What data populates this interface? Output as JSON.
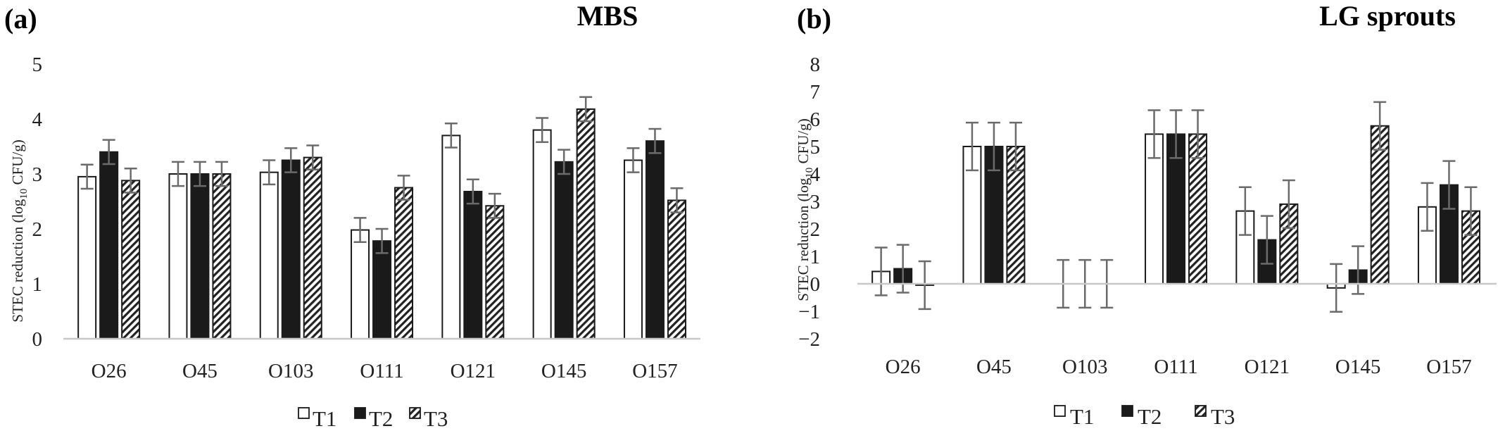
{
  "chart_data": [
    {
      "type": "bar",
      "panel": "(a)",
      "title": "MBS",
      "xlabel": "",
      "ylabel": "STEC reduction (log10 CFU/g)",
      "ylabel_main": "STEC reduction (log",
      "ylabel_sub": "10",
      "ylabel_tail": " CFU/g)",
      "ylim": [
        0,
        5
      ],
      "yticks": [
        "0",
        "1",
        "2",
        "3",
        "4",
        "5"
      ],
      "categories": [
        "O26",
        "O45",
        "O103",
        "O111",
        "O121",
        "O145",
        "O157"
      ],
      "series": [
        {
          "name": "T1",
          "values": [
            2.95,
            3.0,
            3.03,
            1.98,
            3.7,
            3.8,
            3.25
          ],
          "errors": [
            0.22,
            0.22,
            0.22,
            0.22,
            0.22,
            0.22,
            0.22
          ]
        },
        {
          "name": "T2",
          "values": [
            3.4,
            3.0,
            3.25,
            1.78,
            2.68,
            3.22,
            3.6
          ],
          "errors": [
            0.22,
            0.22,
            0.22,
            0.22,
            0.22,
            0.22,
            0.22
          ]
        },
        {
          "name": "T3",
          "values": [
            2.88,
            3.0,
            3.3,
            2.75,
            2.42,
            4.18,
            2.52
          ],
          "errors": [
            0.22,
            0.22,
            0.22,
            0.22,
            0.22,
            0.22,
            0.22
          ]
        }
      ],
      "grid": false,
      "legend_position": "bottom"
    },
    {
      "type": "bar",
      "panel": "(b)",
      "title": "LG sprouts",
      "xlabel": "",
      "ylabel": "STEC reduction (log10 CFU/g)",
      "ylabel_main": "STEC reduction (log",
      "ylabel_sub": "10",
      "ylabel_tail": " CFU/g)",
      "ylim": [
        -2,
        8
      ],
      "yticks": [
        "−2",
        "−1",
        "0",
        "1",
        "2",
        "3",
        "4",
        "5",
        "6",
        "7",
        "8"
      ],
      "categories": [
        "O26",
        "O45",
        "O103",
        "O111",
        "O121",
        "O145",
        "O157"
      ],
      "series": [
        {
          "name": "T1",
          "values": [
            0.45,
            5.0,
            0.0,
            5.45,
            2.65,
            -0.15,
            2.8
          ],
          "errors": [
            0.87,
            0.87,
            0.87,
            0.87,
            0.87,
            0.87,
            0.87
          ]
        },
        {
          "name": "T2",
          "values": [
            0.55,
            5.0,
            0.0,
            5.45,
            1.6,
            0.5,
            3.6
          ],
          "errors": [
            0.87,
            0.87,
            0.87,
            0.87,
            0.87,
            0.87,
            0.87
          ]
        },
        {
          "name": "T3",
          "values": [
            -0.05,
            5.0,
            0.0,
            5.45,
            2.9,
            5.75,
            2.65
          ],
          "errors": [
            0.87,
            0.87,
            0.87,
            0.87,
            0.87,
            0.87,
            0.87
          ]
        }
      ],
      "grid": false,
      "legend_position": "bottom"
    }
  ]
}
